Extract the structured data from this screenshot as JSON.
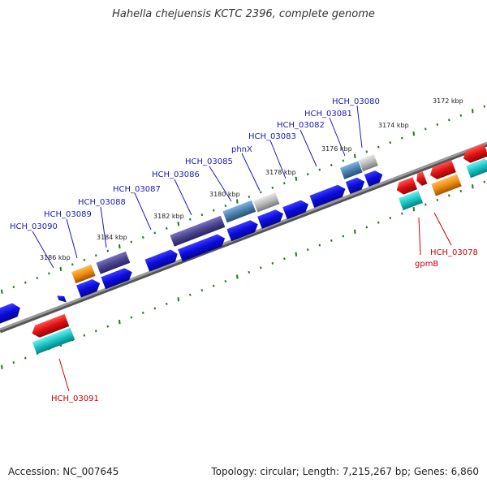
{
  "title": "Hahella chejuensis KCTC 2396, complete genome",
  "accession": "Accession: NC_007645",
  "summary": "Topology: circular; Length: 7,215,267 bp; Genes: 6,860",
  "ruler": {
    "ticks": [
      "3172 kbp",
      "3174 kbp",
      "3176 kbp",
      "3178 kbp",
      "3180 kbp",
      "3182 kbp",
      "3184 kbp",
      "3186 kbp"
    ]
  },
  "forward_labels": [
    "HCH_03080",
    "HCH_03081",
    "HCH_03082",
    "HCH_03083",
    "phnX",
    "HCH_03085",
    "HCH_03086",
    "HCH_03087",
    "HCH_03088",
    "HCH_03089",
    "HCH_03090"
  ],
  "reverse_labels": [
    "gpmB",
    "HCH_03078",
    "HCH_03091"
  ],
  "colors": {
    "forward_label": "#1a1ab8",
    "reverse_label": "#cc0000",
    "tick": "#1a7a1a",
    "backbone": "#777777",
    "cds_forward": "#0b0bdd",
    "cds_reverse": "#e01010",
    "cds_cyan": "#17c4c4",
    "cds_orange": "#f08a10",
    "cds_dark": "#4a4490",
    "cds_steel": "#4a80b0",
    "cds_grey": "#b8b8b8"
  }
}
